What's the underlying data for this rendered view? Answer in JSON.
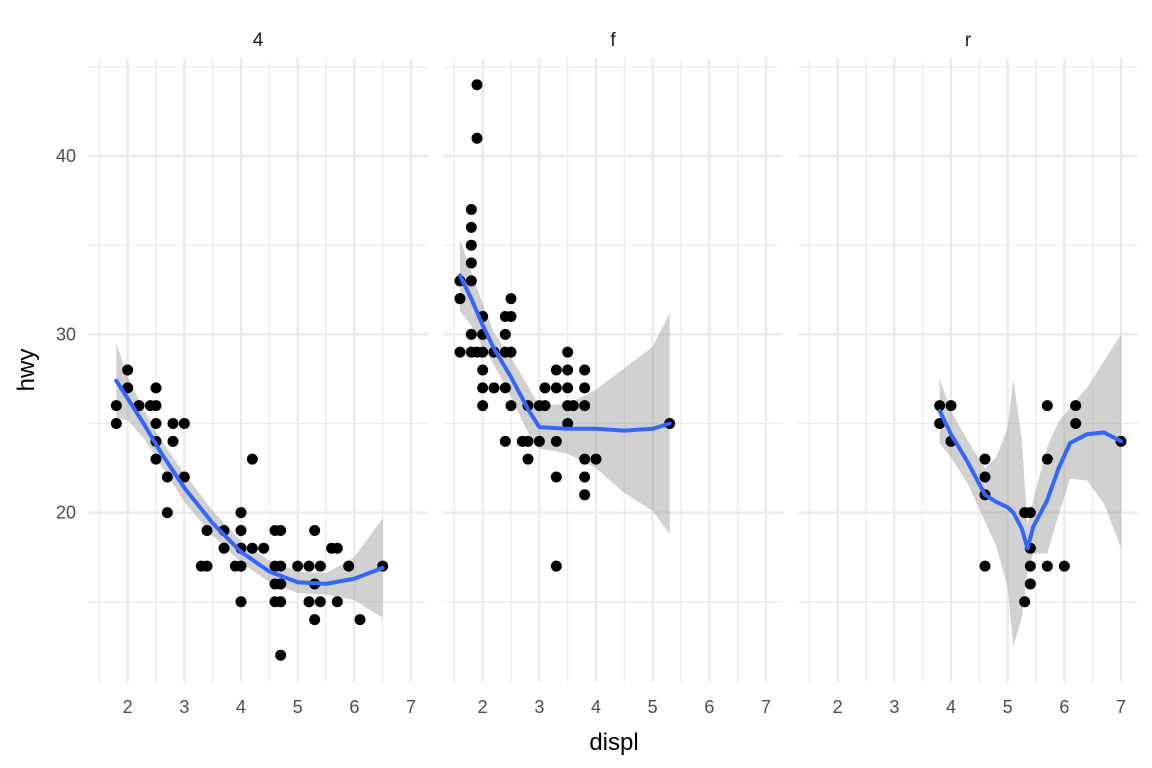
{
  "chart_data": {
    "type": "scatter",
    "xlabel": "displ",
    "ylabel": "hwy",
    "xlim": [
      1.3,
      7.3
    ],
    "ylim": [
      10.5,
      45.5
    ],
    "x_major_ticks": [
      2,
      3,
      4,
      5,
      6,
      7
    ],
    "y_major_ticks": [
      20,
      30,
      40
    ],
    "grid": true,
    "colors": {
      "points": "#000000",
      "smooth_line": "#3366FF",
      "ribbon": "#999999",
      "grid": "#EBEBEB"
    },
    "panels": [
      {
        "strip": "4",
        "points": [
          [
            1.8,
            26
          ],
          [
            1.8,
            25
          ],
          [
            2.0,
            28
          ],
          [
            2.0,
            27
          ],
          [
            2.2,
            26
          ],
          [
            2.4,
            26
          ],
          [
            2.5,
            27
          ],
          [
            2.5,
            26
          ],
          [
            2.5,
            25
          ],
          [
            2.5,
            24
          ],
          [
            2.5,
            23
          ],
          [
            2.7,
            20
          ],
          [
            2.7,
            22
          ],
          [
            2.8,
            25
          ],
          [
            2.8,
            24
          ],
          [
            3.0,
            25
          ],
          [
            3.0,
            22
          ],
          [
            3.3,
            17
          ],
          [
            3.4,
            17
          ],
          [
            3.4,
            19
          ],
          [
            3.7,
            19
          ],
          [
            3.7,
            18
          ],
          [
            3.9,
            17
          ],
          [
            4.0,
            20
          ],
          [
            4.0,
            19
          ],
          [
            4.0,
            18
          ],
          [
            4.0,
            17
          ],
          [
            4.0,
            15
          ],
          [
            4.2,
            23
          ],
          [
            4.2,
            18
          ],
          [
            4.4,
            18
          ],
          [
            4.6,
            16
          ],
          [
            4.6,
            17
          ],
          [
            4.6,
            19
          ],
          [
            4.6,
            15
          ],
          [
            4.7,
            19
          ],
          [
            4.7,
            16
          ],
          [
            4.7,
            15
          ],
          [
            4.7,
            12
          ],
          [
            4.7,
            17
          ],
          [
            5.0,
            17
          ],
          [
            5.2,
            17
          ],
          [
            5.2,
            15
          ],
          [
            5.3,
            19
          ],
          [
            5.3,
            16
          ],
          [
            5.3,
            14
          ],
          [
            5.4,
            17
          ],
          [
            5.4,
            15
          ],
          [
            5.6,
            18
          ],
          [
            5.7,
            18
          ],
          [
            5.7,
            15
          ],
          [
            5.9,
            17
          ],
          [
            6.1,
            14
          ],
          [
            6.5,
            17
          ]
        ],
        "smooth": [
          [
            1.8,
            27.4
          ],
          [
            2.0,
            26.4
          ],
          [
            2.3,
            24.9
          ],
          [
            2.6,
            23.3
          ],
          [
            3.0,
            21.4
          ],
          [
            3.5,
            19.4
          ],
          [
            4.0,
            17.8
          ],
          [
            4.5,
            16.7
          ],
          [
            5.0,
            16.1
          ],
          [
            5.5,
            16.0
          ],
          [
            6.0,
            16.3
          ],
          [
            6.5,
            16.9
          ]
        ],
        "ribbon_half_width": [
          2.1,
          1.2,
          0.8,
          0.7,
          0.8,
          0.7,
          0.6,
          0.6,
          0.6,
          0.6,
          1.2,
          2.8
        ]
      },
      {
        "strip": "f",
        "points": [
          [
            1.6,
            33
          ],
          [
            1.6,
            32
          ],
          [
            1.6,
            29
          ],
          [
            1.8,
            37
          ],
          [
            1.8,
            36
          ],
          [
            1.8,
            35
          ],
          [
            1.8,
            34
          ],
          [
            1.8,
            33
          ],
          [
            1.8,
            30
          ],
          [
            1.8,
            29
          ],
          [
            1.9,
            44
          ],
          [
            1.9,
            41
          ],
          [
            1.9,
            29
          ],
          [
            2.0,
            31
          ],
          [
            2.0,
            30
          ],
          [
            2.0,
            29
          ],
          [
            2.0,
            28
          ],
          [
            2.0,
            27
          ],
          [
            2.0,
            26
          ],
          [
            2.2,
            29
          ],
          [
            2.2,
            27
          ],
          [
            2.4,
            31
          ],
          [
            2.4,
            30
          ],
          [
            2.4,
            29
          ],
          [
            2.4,
            27
          ],
          [
            2.4,
            24
          ],
          [
            2.5,
            32
          ],
          [
            2.5,
            31
          ],
          [
            2.5,
            29
          ],
          [
            2.5,
            26
          ],
          [
            2.7,
            24
          ],
          [
            2.8,
            26
          ],
          [
            2.8,
            24
          ],
          [
            2.8,
            23
          ],
          [
            3.0,
            26
          ],
          [
            3.0,
            24
          ],
          [
            3.1,
            27
          ],
          [
            3.1,
            26
          ],
          [
            3.3,
            28
          ],
          [
            3.3,
            27
          ],
          [
            3.3,
            24
          ],
          [
            3.3,
            22
          ],
          [
            3.3,
            17
          ],
          [
            3.5,
            29
          ],
          [
            3.5,
            28
          ],
          [
            3.5,
            27
          ],
          [
            3.5,
            26
          ],
          [
            3.5,
            25
          ],
          [
            3.6,
            26
          ],
          [
            3.8,
            28
          ],
          [
            3.8,
            27
          ],
          [
            3.8,
            26
          ],
          [
            3.8,
            23
          ],
          [
            3.8,
            22
          ],
          [
            3.8,
            21
          ],
          [
            4.0,
            23
          ],
          [
            5.3,
            25
          ]
        ],
        "smooth": [
          [
            1.6,
            33.3
          ],
          [
            1.8,
            32.0
          ],
          [
            2.0,
            30.5
          ],
          [
            2.2,
            29.2
          ],
          [
            2.5,
            27.6
          ],
          [
            2.8,
            25.8
          ],
          [
            3.0,
            24.8
          ],
          [
            3.5,
            24.7
          ],
          [
            4.0,
            24.7
          ],
          [
            4.5,
            24.6
          ],
          [
            5.0,
            24.7
          ],
          [
            5.3,
            25.0
          ]
        ],
        "ribbon_half_width": [
          2.0,
          1.5,
          1.2,
          0.9,
          1.1,
          1.3,
          1.2,
          1.4,
          2.2,
          3.5,
          4.6,
          6.2
        ]
      },
      {
        "strip": "r",
        "points": [
          [
            3.8,
            26
          ],
          [
            3.8,
            25
          ],
          [
            4.0,
            26
          ],
          [
            4.0,
            24
          ],
          [
            4.6,
            23
          ],
          [
            4.6,
            22
          ],
          [
            4.6,
            21
          ],
          [
            4.6,
            17
          ],
          [
            5.3,
            15
          ],
          [
            5.3,
            20
          ],
          [
            5.4,
            20
          ],
          [
            5.4,
            18
          ],
          [
            5.4,
            17
          ],
          [
            5.4,
            16
          ],
          [
            5.7,
            26
          ],
          [
            5.7,
            23
          ],
          [
            5.7,
            17
          ],
          [
            6.0,
            17
          ],
          [
            6.2,
            26
          ],
          [
            6.2,
            25
          ],
          [
            7.0,
            24
          ]
        ],
        "smooth": [
          [
            3.8,
            25.7
          ],
          [
            4.0,
            24.4
          ],
          [
            4.3,
            22.8
          ],
          [
            4.6,
            21.0
          ],
          [
            4.8,
            20.6
          ],
          [
            5.0,
            20.3
          ],
          [
            5.1,
            20.0
          ],
          [
            5.25,
            19.1
          ],
          [
            5.35,
            18.0
          ],
          [
            5.45,
            19.2
          ],
          [
            5.7,
            20.7
          ],
          [
            5.9,
            22.5
          ],
          [
            6.1,
            23.9
          ],
          [
            6.4,
            24.4
          ],
          [
            6.7,
            24.5
          ],
          [
            7.0,
            24.0
          ]
        ],
        "ribbon_half_width": [
          1.8,
          1.3,
          1.2,
          1.5,
          2.5,
          4.5,
          7.5,
          5.0,
          1.3,
          1.5,
          3.0,
          2.6,
          2.0,
          2.6,
          4.0,
          6.0
        ]
      }
    ]
  }
}
